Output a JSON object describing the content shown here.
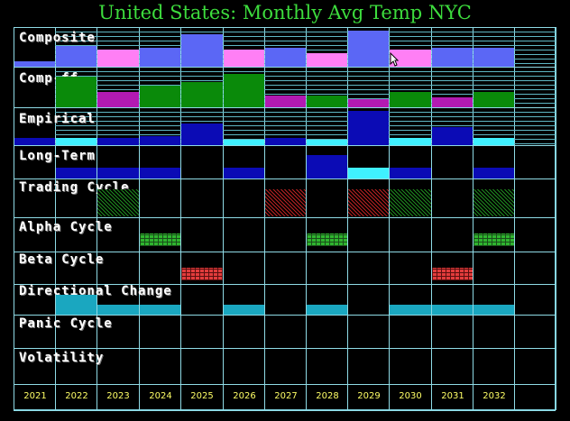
{
  "title": "United States: Monthly Avg Temp NYC",
  "years": [
    "2021",
    "2022",
    "2023",
    "2024",
    "2025",
    "2026",
    "2027",
    "2028",
    "2029",
    "2030",
    "2031",
    "2032"
  ],
  "rows": [
    {
      "key": "composite",
      "label": "Composite"
    },
    {
      "key": "comp_ff",
      "label": "Comp-ff"
    },
    {
      "key": "empirical",
      "label": "Empirical"
    },
    {
      "key": "long_term",
      "label": "Long-Term"
    },
    {
      "key": "trading_cycle",
      "label": "Trading Cycle"
    },
    {
      "key": "alpha_cycle",
      "label": "Alpha Cycle"
    },
    {
      "key": "beta_cycle",
      "label": "Beta Cycle"
    },
    {
      "key": "directional_change",
      "label": "Directional Change"
    },
    {
      "key": "panic_cycle",
      "label": "Panic Cycle"
    },
    {
      "key": "volatility",
      "label": "Volatility"
    }
  ],
  "colors": {
    "title": "#3ddc3d",
    "grid": "#8fdbe6",
    "blue": "#5b67f5",
    "pink": "#ff7ff5",
    "green": "#0a8a0a",
    "magenta": "#b21ab2",
    "navy": "#0b0bb5",
    "cyan": "#3ff0ff",
    "teal": "#1aa7c0"
  },
  "composite_levels": [
    0.15,
    0.55,
    0.45,
    0.5,
    0.85,
    0.45,
    0.5,
    0.35,
    0.95,
    0.45,
    0.5,
    0.5
  ],
  "composite_colors": [
    "blue",
    "blue",
    "pink",
    "blue",
    "blue",
    "pink",
    "blue",
    "pink",
    "blue",
    "pink",
    "blue",
    "blue"
  ],
  "compff_levels": [
    0,
    0.8,
    0.4,
    0.55,
    0.65,
    0.85,
    0.3,
    0.3,
    0.2,
    0.4,
    0.25,
    0.4
  ],
  "compff_colors": [
    "green",
    "green",
    "magenta",
    "green",
    "green",
    "green",
    "magenta",
    "green",
    "magenta",
    "green",
    "magenta",
    "green"
  ],
  "empirical_levels": [
    0.2,
    0.2,
    0.2,
    0.25,
    0.6,
    0.15,
    0.2,
    0.15,
    0.95,
    0.2,
    0.5,
    0.2
  ],
  "empirical_colors": [
    "navy",
    "cyan",
    "navy",
    "navy",
    "navy",
    "cyan",
    "navy",
    "cyan",
    "navy",
    "cyan",
    "navy",
    "cyan"
  ],
  "longterm_levels": [
    0,
    0.35,
    0.35,
    0.35,
    0,
    0.35,
    0,
    0.75,
    0.35,
    0.35,
    0,
    0.35
  ],
  "longterm_colors": [
    "navy",
    "navy",
    "navy",
    "navy",
    "navy",
    "navy",
    "navy",
    "navy",
    "cyan",
    "navy",
    "navy",
    "navy"
  ],
  "trading_cycle": [
    "",
    "",
    "green",
    "",
    "",
    "",
    "red",
    "",
    "red",
    "green",
    "",
    "green"
  ],
  "alpha_cycle": [
    "",
    "",
    "",
    "green",
    "",
    "",
    "",
    "green",
    "",
    "",
    "",
    "green"
  ],
  "beta_cycle": [
    "",
    "",
    "",
    "",
    "red",
    "",
    "",
    "",
    "",
    "",
    "red",
    ""
  ],
  "directional_change": [
    0,
    1,
    0.5,
    0.5,
    0,
    0.5,
    0,
    0.5,
    0,
    0.5,
    0.5,
    0.5
  ]
}
